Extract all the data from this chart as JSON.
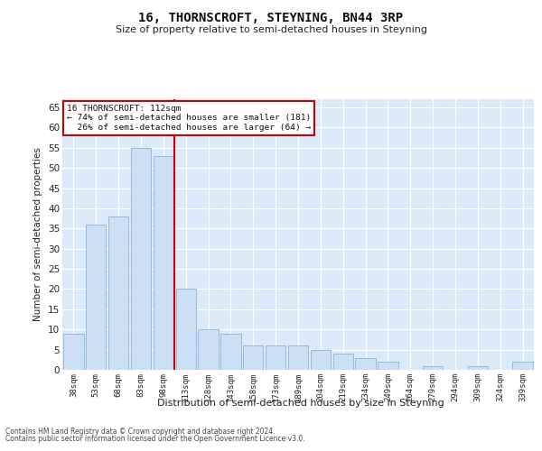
{
  "title": "16, THORNSCROFT, STEYNING, BN44 3RP",
  "subtitle": "Size of property relative to semi-detached houses in Steyning",
  "xlabel": "Distribution of semi-detached houses by size in Steyning",
  "ylabel": "Number of semi-detached properties",
  "categories": [
    "38sqm",
    "53sqm",
    "68sqm",
    "83sqm",
    "98sqm",
    "113sqm",
    "128sqm",
    "143sqm",
    "158sqm",
    "173sqm",
    "189sqm",
    "204sqm",
    "219sqm",
    "234sqm",
    "249sqm",
    "264sqm",
    "279sqm",
    "294sqm",
    "309sqm",
    "324sqm",
    "339sqm"
  ],
  "values": [
    9,
    36,
    38,
    55,
    53,
    20,
    10,
    9,
    6,
    6,
    6,
    5,
    4,
    3,
    2,
    0,
    1,
    0,
    1,
    0,
    2
  ],
  "bar_color": "#ccdff5",
  "bar_edge_color": "#8ab4d8",
  "pct_smaller": 74,
  "n_smaller": 181,
  "pct_larger": 26,
  "n_larger": 64,
  "annotation_box_color": "#cc0000",
  "ylim": [
    0,
    67
  ],
  "yticks": [
    0,
    5,
    10,
    15,
    20,
    25,
    30,
    35,
    40,
    45,
    50,
    55,
    60,
    65
  ],
  "background_color": "#dce9f8",
  "grid_color": "#ffffff",
  "footer_line1": "Contains HM Land Registry data © Crown copyright and database right 2024.",
  "footer_line2": "Contains public sector information licensed under the Open Government Licence v3.0."
}
